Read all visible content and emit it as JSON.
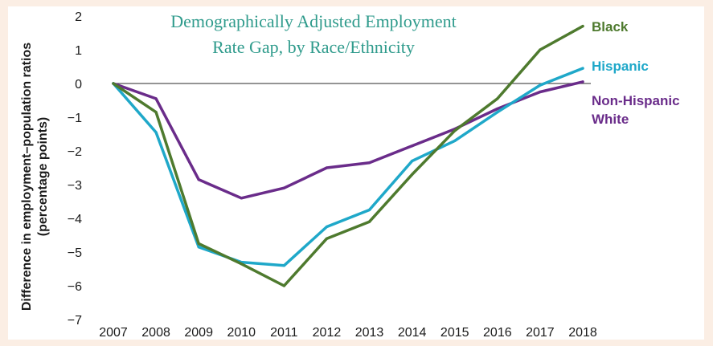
{
  "colors": {
    "background": "#fbeee4",
    "title": "#2f9b8c",
    "black_series": "#4e7a2e",
    "hispanic_series": "#1fa8c9",
    "white_series": "#6a2c8a",
    "zero_line": "#555555"
  },
  "chart_data": {
    "type": "line",
    "title_lines": [
      "Demographically Adjusted Employment",
      "Rate Gap, by Race/Ethnicity"
    ],
    "ylabel_lines": [
      "Difference in employment–population ratios",
      "(percentage points)"
    ],
    "xlabel": "",
    "categories": [
      "2007",
      "2008",
      "2009",
      "2010",
      "2011",
      "2012",
      "2013",
      "2014",
      "2015",
      "2016",
      "2017",
      "2018"
    ],
    "ylim": [
      -7,
      2
    ],
    "yticks": [
      2,
      1,
      0,
      -1,
      -2,
      -3,
      -4,
      -5,
      -6,
      -7
    ],
    "ytick_labels": [
      "2",
      "1",
      "0",
      "−1",
      "−2",
      "−3",
      "−4",
      "−5",
      "−6",
      "−7"
    ],
    "grid": false,
    "zero_line": true,
    "series": [
      {
        "name": "Black",
        "label_lines": [
          "Black"
        ],
        "color": "#4e7a2e",
        "values": [
          0,
          -0.85,
          -4.75,
          -5.35,
          -6.0,
          -4.6,
          -4.1,
          -2.7,
          -1.4,
          -0.45,
          1.0,
          1.7
        ]
      },
      {
        "name": "Hispanic",
        "label_lines": [
          "Hispanic"
        ],
        "color": "#1fa8c9",
        "values": [
          0,
          -1.45,
          -4.85,
          -5.3,
          -5.4,
          -4.25,
          -3.75,
          -2.3,
          -1.7,
          -0.85,
          -0.05,
          0.45
        ]
      },
      {
        "name": "Non-Hispanic White",
        "label_lines": [
          "Non-Hispanic",
          "White"
        ],
        "color": "#6a2c8a",
        "values": [
          0,
          -0.45,
          -2.85,
          -3.4,
          -3.1,
          -2.5,
          -2.35,
          -1.85,
          -1.35,
          -0.75,
          -0.25,
          0.05
        ]
      }
    ]
  }
}
